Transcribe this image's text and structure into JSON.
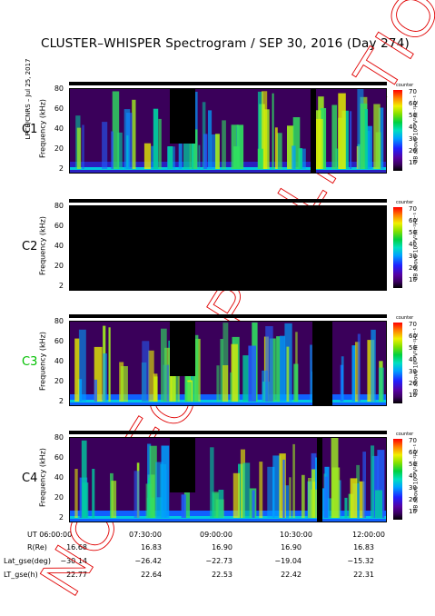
{
  "title": "CLUSTER–WHISPER Spectrogram / SEP 30, 2016 (Day 274)",
  "sidenote": "LPCE/CNRS – Jul 25, 2017",
  "watermark": "NOT FOR PUBLICATION",
  "chart_data": [
    {
      "type": "heatmap",
      "panel": "C1",
      "label_color": "#000000",
      "ylabel": "Frequency (kHz)",
      "yticks": [
        "80",
        "60",
        "40",
        "20",
        "2"
      ],
      "colorbar_ticks": [
        "70",
        "60",
        "50",
        "40",
        "30",
        "20",
        "10"
      ],
      "colorbar_label": "dB above 10⁻⁸V²m⁻²Hz⁻¹",
      "colorbar_top": "counter"
    },
    {
      "type": "heatmap",
      "panel": "C2",
      "label_color": "#000000",
      "ylabel": "Frequency (kHz)",
      "yticks": [
        "80",
        "60",
        "40",
        "20",
        "2"
      ],
      "colorbar_ticks": [
        "70",
        "60",
        "50",
        "40",
        "30",
        "20",
        "10"
      ],
      "colorbar_label": "dB above 10⁻⁸V²m⁻²Hz⁻¹",
      "colorbar_top": "counter"
    },
    {
      "type": "heatmap",
      "panel": "C3",
      "label_color": "#00c000",
      "ylabel": "Frequency (kHz)",
      "yticks": [
        "80",
        "60",
        "40",
        "20",
        "2"
      ],
      "colorbar_ticks": [
        "70",
        "60",
        "50",
        "40",
        "30",
        "20",
        "10"
      ],
      "colorbar_label": "dB above 10⁻⁸V²m⁻²Hz⁻¹",
      "colorbar_top": "counter"
    },
    {
      "type": "heatmap",
      "panel": "C4",
      "label_color": "#000000",
      "ylabel": "Frequency (kHz)",
      "yticks": [
        "80",
        "60",
        "40",
        "20",
        "2"
      ],
      "colorbar_ticks": [
        "70",
        "60",
        "50",
        "40",
        "30",
        "20",
        "10"
      ],
      "colorbar_label": "dB above 10⁻⁸V²m⁻²Hz⁻¹",
      "colorbar_top": "counter"
    }
  ],
  "xaxis": {
    "ticks": [
      "UT 06:00:00",
      "07:30:00",
      "09:00:00",
      "10:30:00",
      "12:00:00"
    ]
  },
  "orbit_table": {
    "rows": [
      {
        "label": "R(Re)",
        "values": [
          "16.68",
          "16.83",
          "16.90",
          "16.90",
          "16.83"
        ]
      },
      {
        "label": "Lat_gse(deg)",
        "values": [
          "−30.14",
          "−26.42",
          "−22.73",
          "−19.04",
          "−15.32"
        ]
      },
      {
        "label": "LT_gse(h)",
        "values": [
          "22.77",
          "22.64",
          "22.53",
          "22.42",
          "22.31"
        ]
      }
    ]
  }
}
